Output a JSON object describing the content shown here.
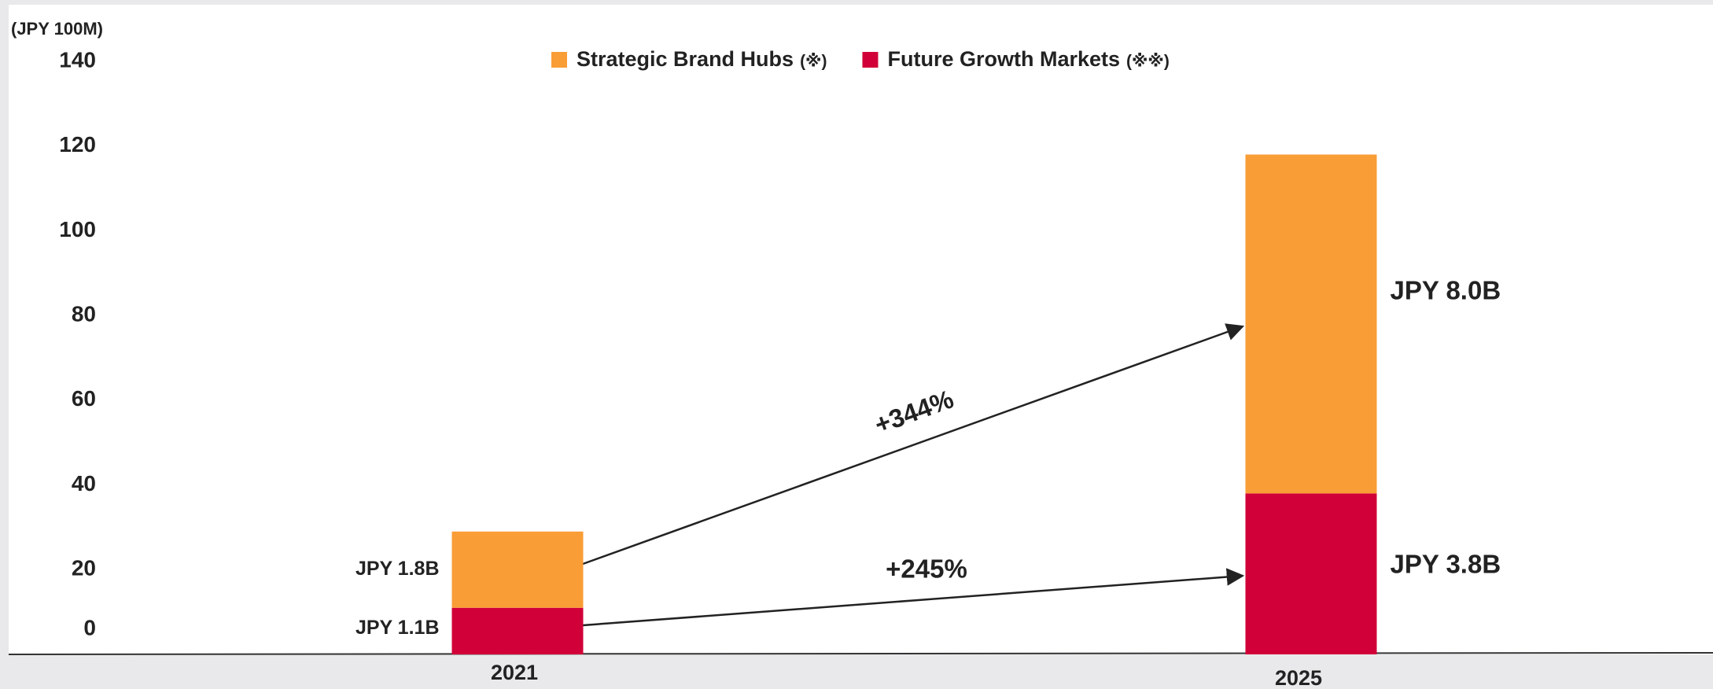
{
  "chart_data": {
    "type": "stacked_bar",
    "y_unit_label": "(JPY 100M)",
    "categories": [
      "2021",
      "2025"
    ],
    "series": [
      {
        "name": "Future Growth Markets",
        "note": "(※※)",
        "color": "#d10038",
        "values": [
          11,
          38
        ],
        "value_labels": [
          "JPY 1.1B",
          "JPY 3.8B"
        ]
      },
      {
        "name": "Strategic Brand Hubs",
        "note": "(※)",
        "color": "#f99d36",
        "values": [
          18,
          80
        ],
        "value_labels": [
          "JPY 1.8B",
          "JPY 8.0B"
        ]
      }
    ],
    "legend_order": [
      1,
      0
    ],
    "annotations": [
      "+344%",
      "+245%"
    ],
    "ylim": [
      0,
      140
    ],
    "yticks": [
      0,
      20,
      40,
      60,
      80,
      100,
      120,
      140
    ],
    "grid": false
  }
}
